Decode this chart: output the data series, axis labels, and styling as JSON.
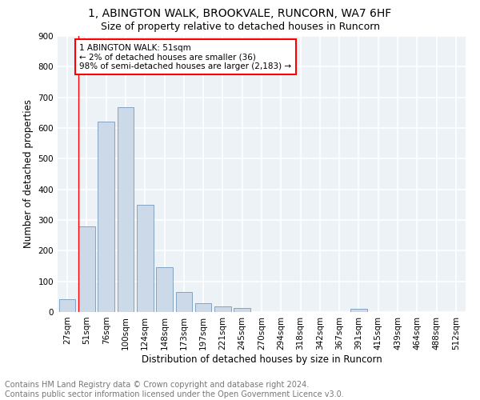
{
  "title_line1": "1, ABINGTON WALK, BROOKVALE, RUNCORN, WA7 6HF",
  "title_line2": "Size of property relative to detached houses in Runcorn",
  "xlabel": "Distribution of detached houses by size in Runcorn",
  "ylabel": "Number of detached properties",
  "footer": "Contains HM Land Registry data © Crown copyright and database right 2024.\nContains public sector information licensed under the Open Government Licence v3.0.",
  "bar_labels": [
    "27sqm",
    "51sqm",
    "76sqm",
    "100sqm",
    "124sqm",
    "148sqm",
    "173sqm",
    "197sqm",
    "221sqm",
    "245sqm",
    "270sqm",
    "294sqm",
    "318sqm",
    "342sqm",
    "367sqm",
    "391sqm",
    "415sqm",
    "439sqm",
    "464sqm",
    "488sqm",
    "512sqm"
  ],
  "bar_values": [
    42,
    280,
    622,
    669,
    349,
    146,
    65,
    28,
    17,
    12,
    0,
    0,
    0,
    0,
    0,
    10,
    0,
    0,
    0,
    0,
    0
  ],
  "bar_color": "#ccd9e8",
  "bar_edge_color": "#7799bb",
  "annotation_text": "1 ABINGTON WALK: 51sqm\n← 2% of detached houses are smaller (36)\n98% of semi-detached houses are larger (2,183) →",
  "annotation_box_color": "white",
  "annotation_box_edge_color": "red",
  "vline_color": "red",
  "vline_x_index": 1,
  "ylim": [
    0,
    900
  ],
  "yticks": [
    0,
    100,
    200,
    300,
    400,
    500,
    600,
    700,
    800,
    900
  ],
  "plot_bg_color": "#edf2f7",
  "grid_color": "white",
  "title_fontsize": 10,
  "subtitle_fontsize": 9,
  "axis_label_fontsize": 8.5,
  "tick_fontsize": 7.5,
  "footer_fontsize": 7,
  "annotation_fontsize": 7.5
}
